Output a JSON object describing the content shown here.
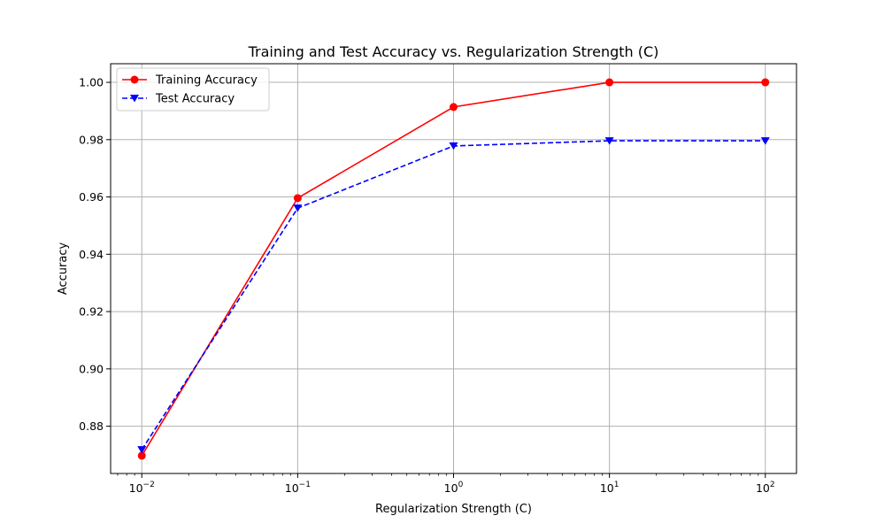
{
  "chart_data": {
    "type": "line",
    "title": "Training and Test Accuracy vs. Regularization Strength (C)",
    "xlabel": "Regularization Strength (C)",
    "ylabel": "Accuracy",
    "x_scale": "log",
    "x": [
      0.01,
      0.1,
      1,
      10,
      100
    ],
    "x_tick_labels": [
      {
        "base": "10",
        "exp": "−2"
      },
      {
        "base": "10",
        "exp": "−1"
      },
      {
        "base": "10",
        "exp": "0"
      },
      {
        "base": "10",
        "exp": "1"
      },
      {
        "base": "10",
        "exp": "2"
      }
    ],
    "y_ticks": [
      "0.88",
      "0.90",
      "0.92",
      "0.94",
      "0.96",
      "0.98",
      "1.00"
    ],
    "ylim": [
      0.8635,
      1.0065
    ],
    "grid": true,
    "legend_position": "top-left",
    "series": [
      {
        "name": "Training Accuracy",
        "values": [
          0.8697,
          0.9596,
          0.9914,
          1.0,
          1.0
        ],
        "color": "#ff0000",
        "line_style": "solid",
        "marker": "circle"
      },
      {
        "name": "Test Accuracy",
        "values": [
          0.8718,
          0.9561,
          0.9778,
          0.9796,
          0.9796
        ],
        "color": "#0000ff",
        "line_style": "dashed",
        "marker": "triangle-down"
      }
    ]
  }
}
